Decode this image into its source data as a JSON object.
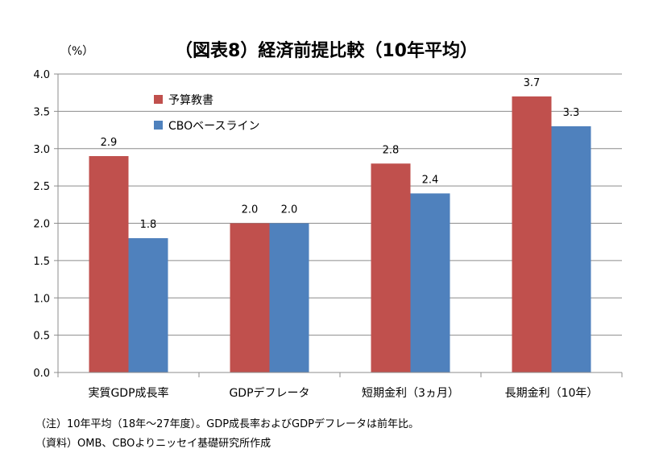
{
  "chart_data": {
    "type": "bar",
    "title": "（図表8）経済前提比較（10年平均）",
    "y_unit": "（%）",
    "categories": [
      "実質GDP成長率",
      "GDPデフレータ",
      "短期金利（3ヵ月）",
      "長期金利（10年）"
    ],
    "series": [
      {
        "name": "予算教書",
        "values": [
          2.9,
          2.0,
          2.8,
          3.7
        ],
        "labels": [
          "2.9",
          "2.0",
          "2.8",
          "3.7"
        ],
        "color": "#C0504D"
      },
      {
        "name": "CBOベースライン",
        "values": [
          1.8,
          2.0,
          2.4,
          3.3
        ],
        "labels": [
          "1.8",
          "2.0",
          "2.4",
          "3.3"
        ],
        "color": "#4F81BD"
      }
    ],
    "ylim": [
      0,
      4.0
    ],
    "yticks": [
      "0.0",
      "0.5",
      "1.0",
      "1.5",
      "2.0",
      "2.5",
      "3.0",
      "3.5",
      "4.0"
    ],
    "grid": true,
    "legend": "top-left"
  },
  "notes": {
    "note1": "（注）10年平均（18年～27年度）。GDP成長率およびGDPデフレータは前年比。",
    "note2": "（資料）OMB、CBOよりニッセイ基礎研究所作成"
  }
}
